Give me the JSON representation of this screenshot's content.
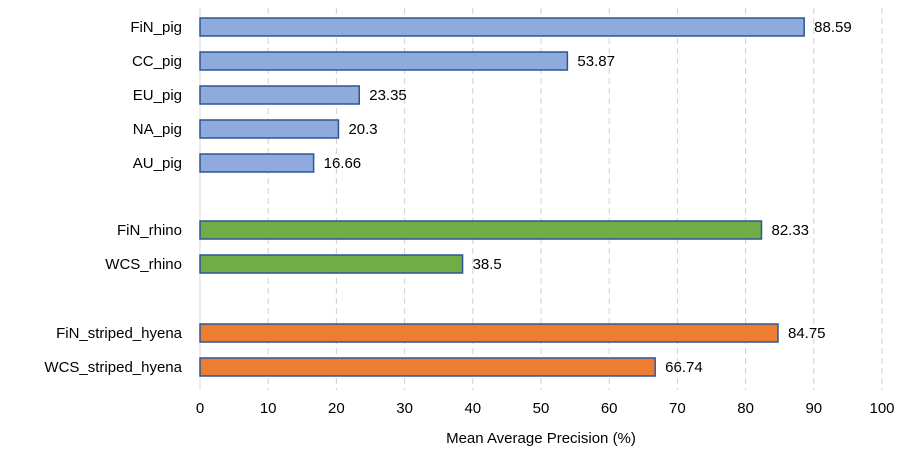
{
  "chart_data": {
    "type": "bar",
    "orientation": "horizontal",
    "xlabel": "Mean Average Precision (%)",
    "xlim": [
      0,
      100
    ],
    "xticks": [
      0,
      10,
      20,
      30,
      40,
      50,
      60,
      70,
      80,
      90,
      100
    ],
    "grid": "vertical dashed",
    "groups": [
      {
        "color": "#8FAADC",
        "bars": [
          {
            "label": "FiN_pig",
            "value": 88.59
          },
          {
            "label": "CC_pig",
            "value": 53.87
          },
          {
            "label": "EU_pig",
            "value": 23.35
          },
          {
            "label": "NA_pig",
            "value": 20.3
          },
          {
            "label": "AU_pig",
            "value": 16.66
          }
        ]
      },
      {
        "color": "#70AD47",
        "bars": [
          {
            "label": "FiN_rhino",
            "value": 82.33
          },
          {
            "label": "WCS_rhino",
            "value": 38.5
          }
        ]
      },
      {
        "color": "#ED7D31",
        "bars": [
          {
            "label": "FiN_striped_hyena",
            "value": 84.75
          },
          {
            "label": "WCS_striped_hyena",
            "value": 66.74
          }
        ]
      }
    ]
  }
}
